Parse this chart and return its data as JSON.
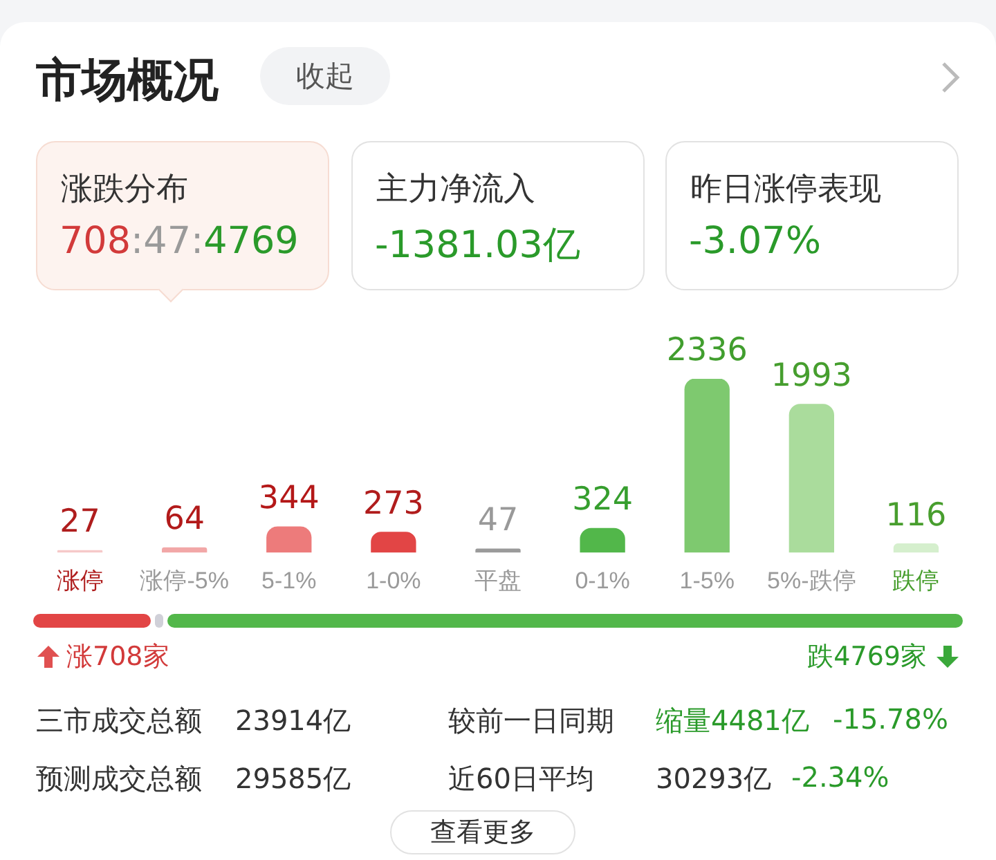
{
  "chart_data": {
    "type": "bar",
    "title": "市场概况",
    "categories": [
      "涨停",
      "涨停-5%",
      "5-1%",
      "1-0%",
      "平盘",
      "0-1%",
      "1-5%",
      "5%-跌停",
      "跌停"
    ],
    "values": [
      27,
      64,
      344,
      273,
      47,
      324,
      2336,
      1993,
      116
    ],
    "colors": [
      "#f6c9c9",
      "#f2a7a7",
      "#ed7b7b",
      "#e24545",
      "#9a9a9a",
      "#52b74a",
      "#7ec96f",
      "#aadc9c",
      "#d5efcd"
    ],
    "data_labels": true,
    "annotations": [
      "收起",
      "涨跌分布",
      "708:47:4769",
      "主力净流入",
      "-1381.03亿",
      "昨日涨停表现",
      "-3.07%",
      "三市成交总额",
      "23914亿",
      "较前一日同期",
      "缩量4481亿",
      "-15.78%",
      "预测成交总额",
      "29585亿",
      "近60日平均",
      "30293亿",
      "-2.34%",
      "查看更多",
      "涨708家",
      "跌4769家"
    ]
  }
}
